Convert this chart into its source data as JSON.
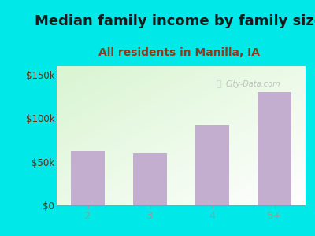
{
  "title": "Median family income by family size",
  "subtitle": "All residents in Manilla, IA",
  "categories": [
    "2",
    "3",
    "4",
    "5+"
  ],
  "values": [
    62000,
    60000,
    92000,
    130000
  ],
  "bar_color": "#c4aed0",
  "title_fontsize": 13,
  "subtitle_fontsize": 10,
  "title_color": "#1a1a1a",
  "subtitle_color": "#8b3a1a",
  "tick_label_color": "#5a3010",
  "outer_bg_color": "#00e8e8",
  "ylim": [
    0,
    160000
  ],
  "yticks": [
    0,
    50000,
    100000,
    150000
  ],
  "ytick_labels": [
    "$0",
    "$50k",
    "$100k",
    "$150k"
  ],
  "watermark": "City-Data.com",
  "grad_top": "#f0fae8",
  "grad_bottom": "#ffffff"
}
